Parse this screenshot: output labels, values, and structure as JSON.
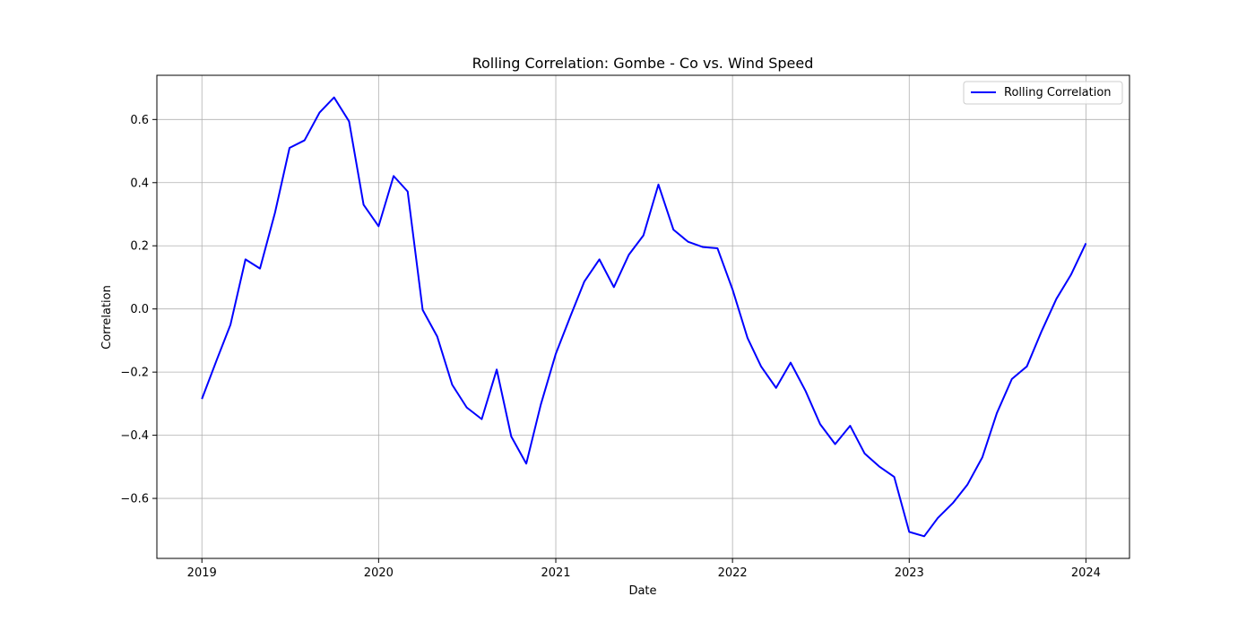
{
  "chart_data": {
    "type": "line",
    "title": "Rolling Correlation: Gombe - Co vs. Wind Speed",
    "xlabel": "Date",
    "ylabel": "Correlation",
    "xlim": [
      "2018-09-30",
      "2024-03-31"
    ],
    "ylim": [
      -0.79,
      0.74
    ],
    "x_ticks": [
      "2019",
      "2020",
      "2021",
      "2022",
      "2023",
      "2024"
    ],
    "y_ticks": [
      -0.6,
      -0.4,
      -0.2,
      0.0,
      0.2,
      0.4,
      0.6
    ],
    "y_tick_labels": [
      "−0.6",
      "−0.4",
      "−0.2",
      "0.0",
      "0.2",
      "0.4",
      "0.6"
    ],
    "grid": true,
    "legend_position": "top-right",
    "series": [
      {
        "name": "Rolling Correlation",
        "color": "#0000ff",
        "x": [
          "2019-01-01",
          "2019-02-01",
          "2019-03-01",
          "2019-04-01",
          "2019-05-01",
          "2019-06-01",
          "2019-07-01",
          "2019-08-01",
          "2019-09-01",
          "2019-10-01",
          "2019-11-01",
          "2019-12-01",
          "2020-01-01",
          "2020-02-01",
          "2020-03-01",
          "2020-04-01",
          "2020-05-01",
          "2020-06-01",
          "2020-07-01",
          "2020-08-01",
          "2020-09-01",
          "2020-10-01",
          "2020-11-01",
          "2020-12-01",
          "2021-01-01",
          "2021-02-01",
          "2021-03-01",
          "2021-04-01",
          "2021-05-01",
          "2021-06-01",
          "2021-07-01",
          "2021-08-01",
          "2021-09-01",
          "2021-10-01",
          "2021-11-01",
          "2021-12-01",
          "2022-01-01",
          "2022-02-01",
          "2022-03-01",
          "2022-04-01",
          "2022-05-01",
          "2022-06-01",
          "2022-07-01",
          "2022-08-01",
          "2022-09-01",
          "2022-10-01",
          "2022-11-01",
          "2022-12-01",
          "2023-01-01",
          "2023-02-01",
          "2023-03-01",
          "2023-04-01",
          "2023-05-01",
          "2023-06-01",
          "2023-07-01",
          "2023-08-01",
          "2023-09-01",
          "2023-10-01",
          "2023-11-01",
          "2023-12-01",
          "2024-01-01"
        ],
        "y": [
          -0.285,
          -0.16,
          -0.05,
          0.157,
          0.128,
          0.305,
          0.51,
          0.534,
          0.622,
          0.67,
          0.594,
          0.33,
          0.262,
          0.421,
          0.372,
          -0.003,
          -0.087,
          -0.24,
          -0.312,
          -0.349,
          -0.192,
          -0.404,
          -0.49,
          -0.303,
          -0.142,
          -0.02,
          0.087,
          0.157,
          0.069,
          0.172,
          0.233,
          0.394,
          0.251,
          0.213,
          0.196,
          0.192,
          0.062,
          -0.092,
          -0.182,
          -0.25,
          -0.17,
          -0.26,
          -0.365,
          -0.428,
          -0.37,
          -0.458,
          -0.5,
          -0.532,
          -0.706,
          -0.72,
          -0.662,
          -0.615,
          -0.557,
          -0.47,
          -0.33,
          -0.222,
          -0.182,
          -0.072,
          0.032,
          0.108,
          0.208
        ]
      }
    ]
  }
}
